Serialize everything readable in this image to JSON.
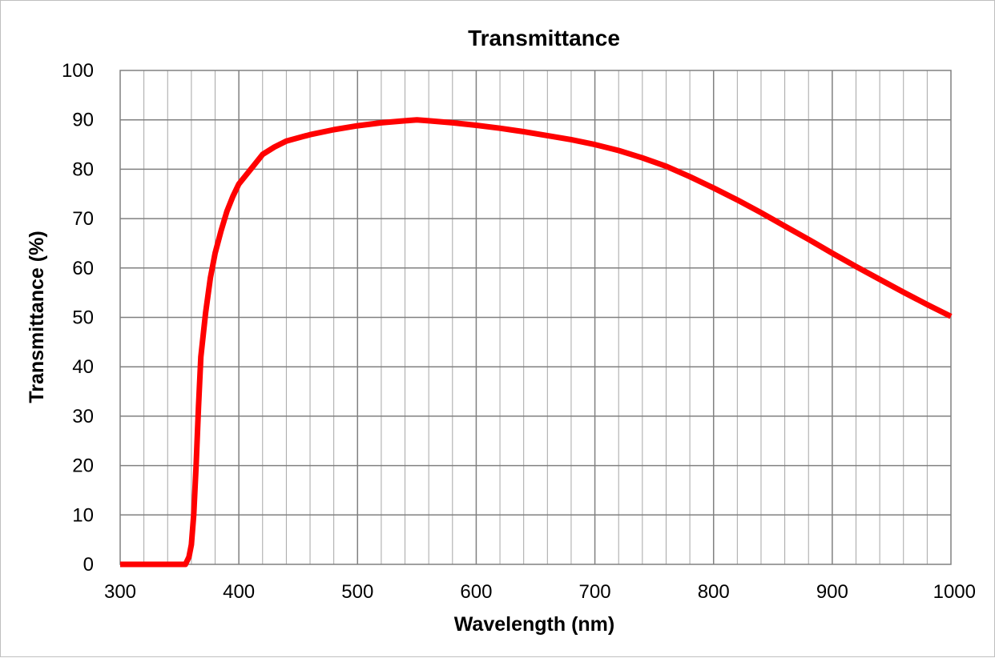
{
  "chart_data": {
    "type": "line",
    "title": "Transmittance",
    "xlabel": "Wavelength (nm)",
    "ylabel": "Transmittance (%)",
    "xlim": [
      300,
      1000
    ],
    "ylim": [
      0,
      100
    ],
    "x_ticks": [
      300,
      400,
      500,
      600,
      700,
      800,
      900,
      1000
    ],
    "y_ticks": [
      0,
      10,
      20,
      30,
      40,
      50,
      60,
      70,
      80,
      90,
      100
    ],
    "x_tick_labels": [
      "300",
      "400",
      "500",
      "600",
      "700",
      "800",
      "900",
      "1000"
    ],
    "y_tick_labels": [
      "0",
      "10",
      "20",
      "30",
      "40",
      "50",
      "60",
      "70",
      "80",
      "90",
      "100"
    ],
    "x_minor_step": 20,
    "grid": true,
    "series_color": "#ff0000",
    "series": [
      {
        "points": [
          [
            300,
            0
          ],
          [
            320,
            0
          ],
          [
            340,
            0
          ],
          [
            355,
            0
          ],
          [
            358,
            1.5
          ],
          [
            360,
            4
          ],
          [
            362,
            10
          ],
          [
            364,
            20
          ],
          [
            366,
            32
          ],
          [
            368,
            42
          ],
          [
            372,
            51
          ],
          [
            376,
            58
          ],
          [
            380,
            63
          ],
          [
            385,
            67.5
          ],
          [
            390,
            71.5
          ],
          [
            395,
            74.5
          ],
          [
            400,
            77
          ],
          [
            410,
            80
          ],
          [
            420,
            83
          ],
          [
            430,
            84.5
          ],
          [
            440,
            85.7
          ],
          [
            460,
            87
          ],
          [
            480,
            88
          ],
          [
            500,
            88.8
          ],
          [
            520,
            89.4
          ],
          [
            540,
            89.8
          ],
          [
            550,
            90
          ],
          [
            560,
            89.8
          ],
          [
            580,
            89.4
          ],
          [
            600,
            88.9
          ],
          [
            620,
            88.3
          ],
          [
            640,
            87.6
          ],
          [
            660,
            86.8
          ],
          [
            680,
            86
          ],
          [
            700,
            85
          ],
          [
            720,
            83.8
          ],
          [
            740,
            82.3
          ],
          [
            760,
            80.6
          ],
          [
            780,
            78.5
          ],
          [
            800,
            76.2
          ],
          [
            820,
            73.8
          ],
          [
            840,
            71.2
          ],
          [
            860,
            68.5
          ],
          [
            880,
            65.8
          ],
          [
            900,
            63
          ],
          [
            920,
            60.3
          ],
          [
            940,
            57.7
          ],
          [
            960,
            55.1
          ],
          [
            980,
            52.6
          ],
          [
            1000,
            50.2
          ]
        ]
      }
    ]
  }
}
